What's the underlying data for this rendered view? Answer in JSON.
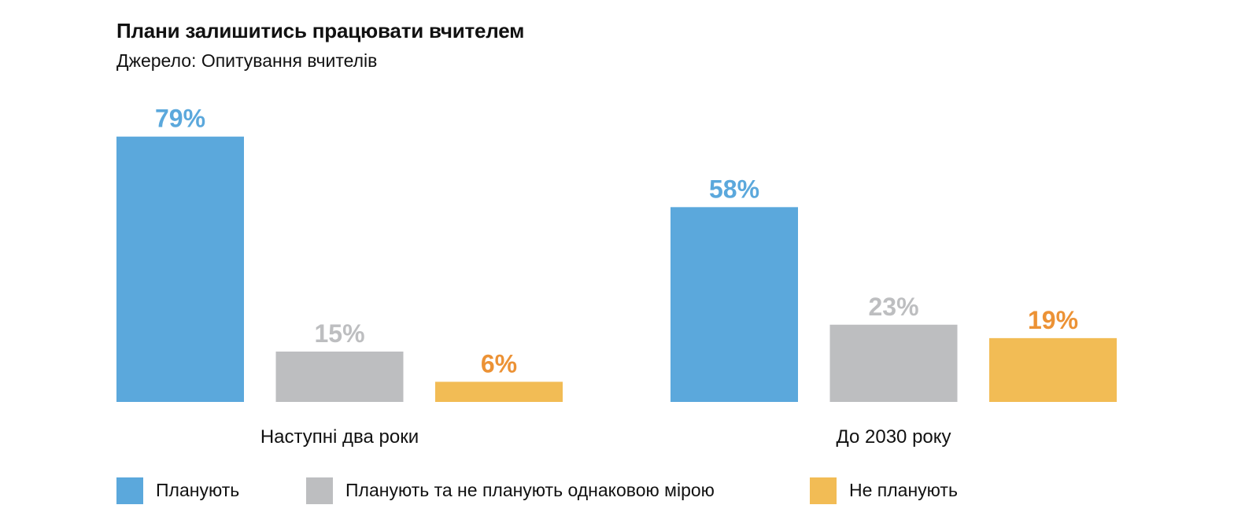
{
  "chart_data": {
    "type": "bar",
    "title": "Плани залишитись працювати вчителем",
    "subtitle": "Джерело: Опитування вчителів",
    "categories": [
      "Наступні два роки",
      "До 2030 року"
    ],
    "series": [
      {
        "name": "Планують",
        "values": [
          79,
          58
        ],
        "labels": [
          "79%",
          "58%"
        ],
        "color": "#5ba8dc",
        "label_color": "#5ba8dc"
      },
      {
        "name": "Планують та не планують однаковою мірою",
        "values": [
          15,
          23
        ],
        "labels": [
          "15%",
          "23%"
        ],
        "color": "#bdbec0",
        "label_color": "#bdbec0"
      },
      {
        "name": "Не планують",
        "values": [
          6,
          19
        ],
        "labels": [
          "6%",
          "19%"
        ],
        "color": "#f2bc55",
        "label_color": "#ec9235"
      }
    ],
    "ylim": [
      0,
      100
    ],
    "grid": false,
    "legend_position": "bottom-left"
  }
}
